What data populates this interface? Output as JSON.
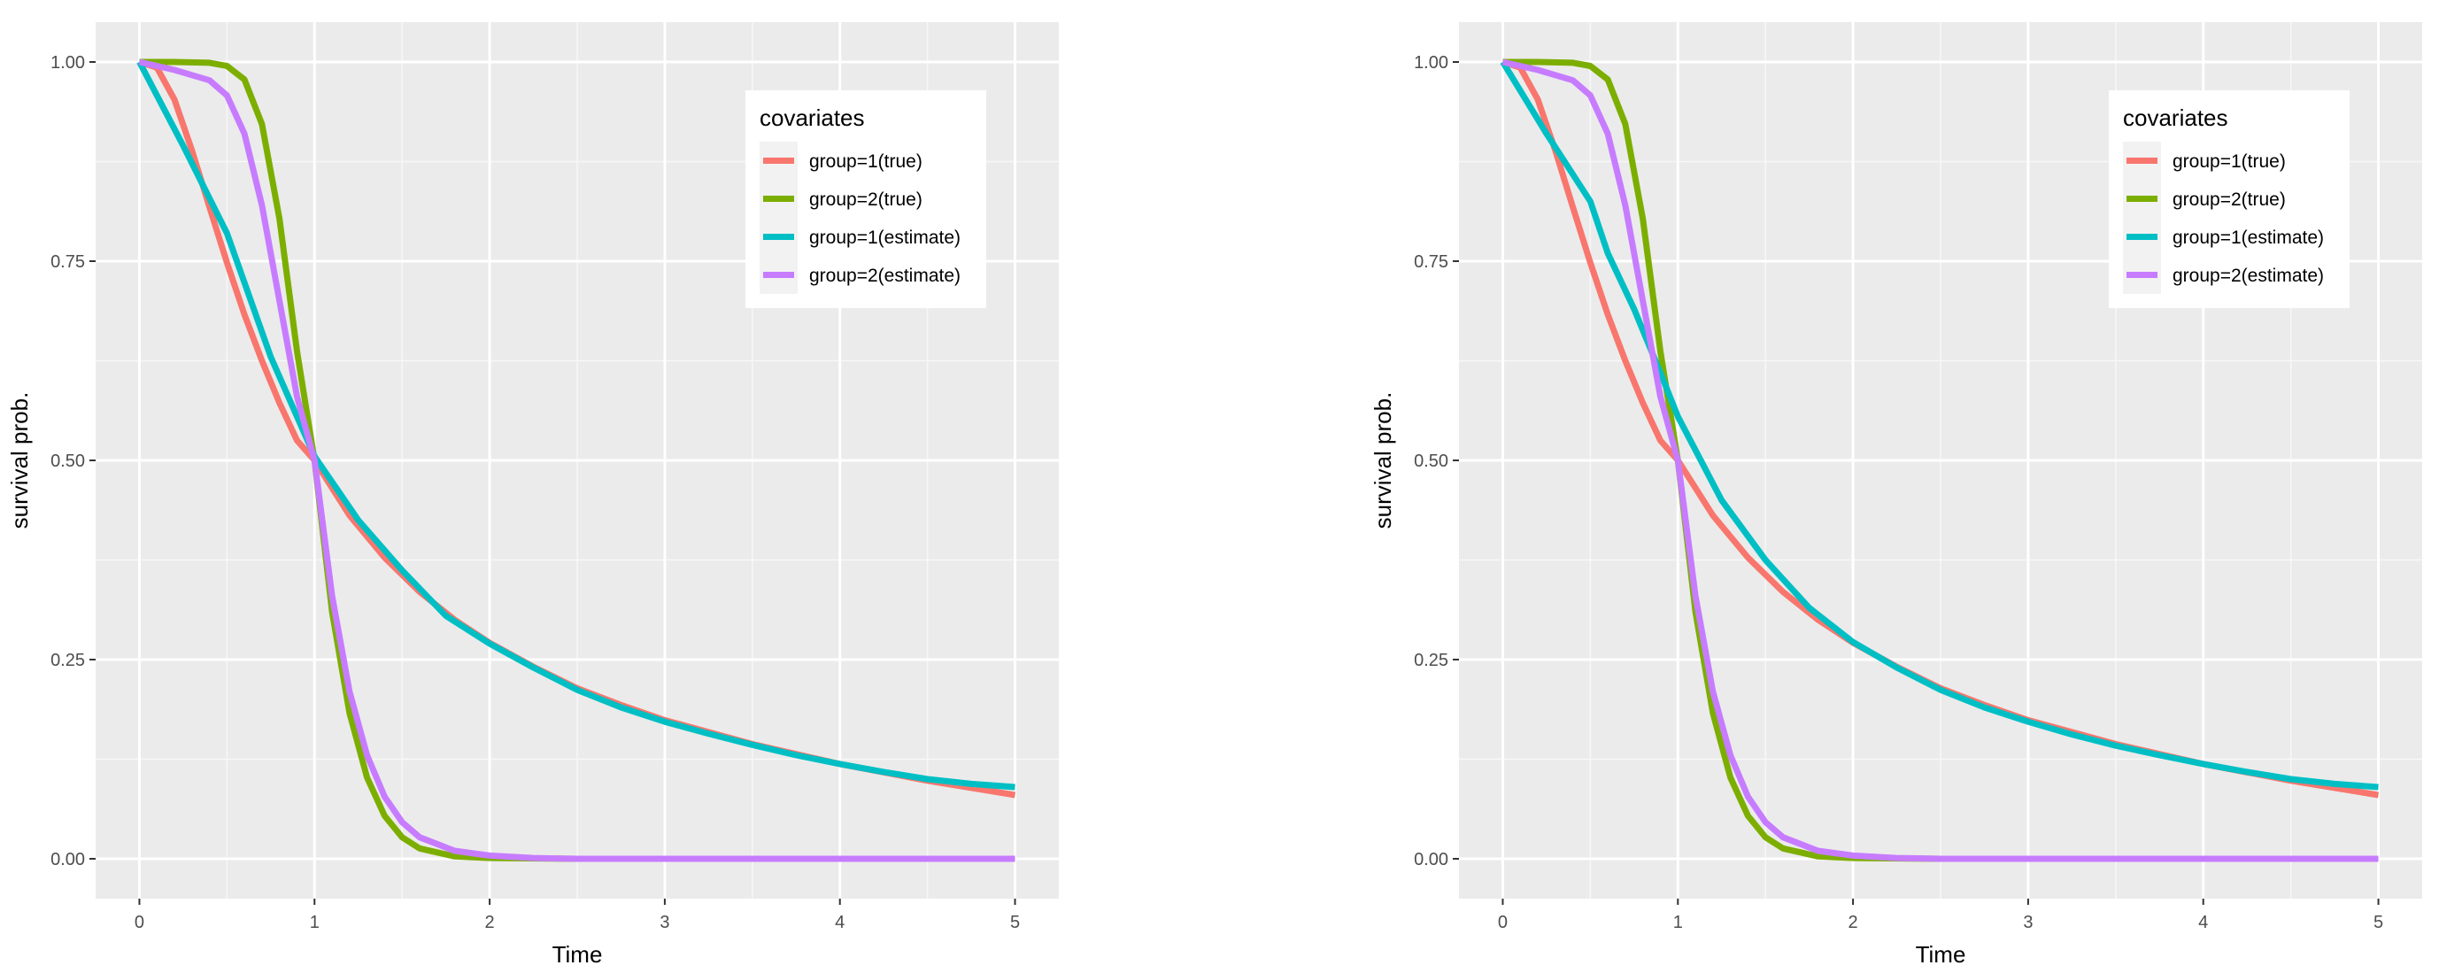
{
  "chart_data": [
    {
      "type": "line",
      "title": "",
      "xlabel": "Time",
      "ylabel": "survival prob.",
      "xlim": [
        -0.25,
        5.25
      ],
      "ylim": [
        -0.05,
        1.05
      ],
      "x_ticks": [
        0,
        1,
        2,
        3,
        4,
        5
      ],
      "x_tick_labels": [
        "0",
        "1",
        "2",
        "3",
        "4",
        "5"
      ],
      "y_ticks": [
        0,
        0.25,
        0.5,
        0.75,
        1
      ],
      "y_tick_labels": [
        "0.00",
        "0.25",
        "0.50",
        "0.75",
        "1.00"
      ],
      "grid": true,
      "legend": {
        "title": "covariates",
        "position": "top-right"
      },
      "series": [
        {
          "name": "group=1(true)",
          "color": "#F8766D",
          "x": [
            0,
            0.1,
            0.2,
            0.3,
            0.4,
            0.5,
            0.6,
            0.7,
            0.8,
            0.9,
            1.0,
            1.2,
            1.4,
            1.6,
            1.8,
            2.0,
            2.25,
            2.5,
            2.75,
            3.0,
            3.5,
            4.0,
            4.5,
            5.0
          ],
          "y": [
            1.0,
            0.993,
            0.953,
            0.889,
            0.818,
            0.748,
            0.683,
            0.625,
            0.572,
            0.525,
            0.5,
            0.431,
            0.378,
            0.335,
            0.3,
            0.271,
            0.241,
            0.214,
            0.193,
            0.174,
            0.144,
            0.119,
            0.098,
            0.08
          ]
        },
        {
          "name": "group=2(true)",
          "color": "#7CAE00",
          "x": [
            0,
            0.2,
            0.4,
            0.5,
            0.6,
            0.7,
            0.8,
            0.9,
            1.0,
            1.1,
            1.2,
            1.3,
            1.4,
            1.5,
            1.6,
            1.8,
            2.0,
            2.5,
            3.0,
            4.0,
            5.0
          ],
          "y": [
            1.0,
            1.0,
            0.999,
            0.995,
            0.978,
            0.922,
            0.803,
            0.637,
            0.5,
            0.31,
            0.183,
            0.102,
            0.054,
            0.027,
            0.013,
            0.003,
            0.001,
            0.0,
            0.0,
            0.0,
            0.0
          ]
        },
        {
          "name": "group=1(estimate)",
          "color": "#00BFC4",
          "x": [
            0,
            0.25,
            0.5,
            0.75,
            1.0,
            1.25,
            1.5,
            1.75,
            2.0,
            2.25,
            2.5,
            2.75,
            3.0,
            3.25,
            3.5,
            3.75,
            4.0,
            4.25,
            4.5,
            4.75,
            5.0
          ],
          "y": [
            1.0,
            0.895,
            0.785,
            0.63,
            0.505,
            0.425,
            0.362,
            0.305,
            0.27,
            0.24,
            0.212,
            0.19,
            0.172,
            0.157,
            0.143,
            0.13,
            0.119,
            0.109,
            0.1,
            0.094,
            0.09
          ]
        },
        {
          "name": "group=2(estimate)",
          "color": "#C77CFF",
          "x": [
            0,
            0.2,
            0.4,
            0.5,
            0.6,
            0.7,
            0.8,
            0.9,
            1.0,
            1.1,
            1.2,
            1.3,
            1.4,
            1.5,
            1.6,
            1.8,
            2.0,
            2.25,
            2.5,
            3.0,
            4.0,
            5.0
          ],
          "y": [
            1.0,
            0.99,
            0.977,
            0.958,
            0.91,
            0.82,
            0.7,
            0.58,
            0.5,
            0.33,
            0.21,
            0.13,
            0.078,
            0.046,
            0.027,
            0.01,
            0.004,
            0.001,
            0.0,
            0.0,
            0.0,
            0.0
          ]
        }
      ]
    },
    {
      "type": "line",
      "title": "",
      "xlabel": "Time",
      "ylabel": "survival prob.",
      "xlim": [
        -0.25,
        5.25
      ],
      "ylim": [
        -0.05,
        1.05
      ],
      "x_ticks": [
        0,
        1,
        2,
        3,
        4,
        5
      ],
      "x_tick_labels": [
        "0",
        "1",
        "2",
        "3",
        "4",
        "5"
      ],
      "y_ticks": [
        0,
        0.25,
        0.5,
        0.75,
        1
      ],
      "y_tick_labels": [
        "0.00",
        "0.25",
        "0.50",
        "0.75",
        "1.00"
      ],
      "grid": true,
      "legend": {
        "title": "covariates",
        "position": "top-right"
      },
      "series": [
        {
          "name": "group=1(true)",
          "color": "#F8766D",
          "x": [
            0,
            0.1,
            0.2,
            0.3,
            0.4,
            0.5,
            0.6,
            0.7,
            0.8,
            0.9,
            1.0,
            1.2,
            1.4,
            1.6,
            1.8,
            2.0,
            2.25,
            2.5,
            2.75,
            3.0,
            3.5,
            4.0,
            4.5,
            5.0
          ],
          "y": [
            1.0,
            0.993,
            0.953,
            0.889,
            0.818,
            0.748,
            0.683,
            0.625,
            0.572,
            0.525,
            0.5,
            0.431,
            0.378,
            0.335,
            0.3,
            0.271,
            0.241,
            0.214,
            0.193,
            0.174,
            0.144,
            0.119,
            0.098,
            0.08
          ]
        },
        {
          "name": "group=2(true)",
          "color": "#7CAE00",
          "x": [
            0,
            0.2,
            0.4,
            0.5,
            0.6,
            0.7,
            0.8,
            0.9,
            1.0,
            1.1,
            1.2,
            1.3,
            1.4,
            1.5,
            1.6,
            1.8,
            2.0,
            2.5,
            3.0,
            4.0,
            5.0
          ],
          "y": [
            1.0,
            1.0,
            0.999,
            0.995,
            0.978,
            0.922,
            0.803,
            0.637,
            0.5,
            0.31,
            0.183,
            0.102,
            0.054,
            0.027,
            0.013,
            0.003,
            0.001,
            0.0,
            0.0,
            0.0,
            0.0
          ]
        },
        {
          "name": "group=1(estimate)",
          "color": "#00BFC4",
          "x": [
            0,
            0.25,
            0.5,
            0.6,
            0.75,
            0.9,
            1.0,
            1.25,
            1.5,
            1.75,
            2.0,
            2.25,
            2.5,
            2.75,
            3.0,
            3.25,
            3.5,
            3.75,
            4.0,
            4.25,
            4.5,
            4.75,
            5.0
          ],
          "y": [
            1.0,
            0.91,
            0.825,
            0.76,
            0.69,
            0.61,
            0.555,
            0.45,
            0.375,
            0.315,
            0.272,
            0.24,
            0.212,
            0.19,
            0.172,
            0.156,
            0.142,
            0.13,
            0.119,
            0.109,
            0.1,
            0.094,
            0.09
          ]
        },
        {
          "name": "group=2(estimate)",
          "color": "#C77CFF",
          "x": [
            0,
            0.2,
            0.4,
            0.5,
            0.6,
            0.7,
            0.8,
            0.9,
            1.0,
            1.1,
            1.2,
            1.3,
            1.4,
            1.5,
            1.6,
            1.8,
            2.0,
            2.25,
            2.5,
            3.0,
            4.0,
            5.0
          ],
          "y": [
            1.0,
            0.99,
            0.977,
            0.958,
            0.91,
            0.82,
            0.7,
            0.58,
            0.5,
            0.33,
            0.21,
            0.13,
            0.078,
            0.046,
            0.027,
            0.01,
            0.004,
            0.001,
            0.0,
            0.0,
            0.0,
            0.0
          ]
        }
      ]
    }
  ]
}
